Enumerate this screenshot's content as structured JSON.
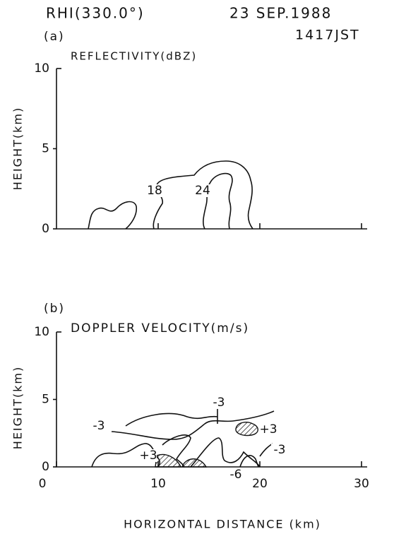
{
  "header": {
    "title": "RHI(330.0°)",
    "date": "23 SEP.1988",
    "time": "1417JST"
  },
  "chart_data": [
    {
      "type": "contour",
      "panel": "(a)",
      "title": "REFLECTIVITY(dBZ)",
      "ylabel": "HEIGHT(km)",
      "xlim": [
        0,
        30
      ],
      "ylim": [
        0,
        10
      ],
      "yticks": [
        0,
        5,
        10
      ],
      "xticks": [
        10,
        20,
        30
      ],
      "xtick_labels": false,
      "contour_levels": [
        18,
        24
      ],
      "contour_labels": [
        18,
        24
      ]
    },
    {
      "type": "contour",
      "panel": "(b)",
      "title": "DOPPLER VELOCITY(m/s)",
      "ylabel": "HEIGHT(km)",
      "xlabel": "HORIZONTAL DISTANCE (km)",
      "xlim": [
        0,
        30
      ],
      "ylim": [
        0,
        10
      ],
      "yticks": [
        0,
        5,
        10
      ],
      "xticks": [
        0,
        10,
        20,
        30
      ],
      "xtick_labels": true,
      "contour_levels": [
        -3,
        3,
        -6
      ],
      "contour_labels": [
        -3,
        -3,
        {
          "value": 3,
          "label": "+3"
        },
        {
          "value": 3,
          "label": "+3"
        },
        -3,
        {
          "value": -6,
          "label": "-6"
        }
      ]
    }
  ]
}
